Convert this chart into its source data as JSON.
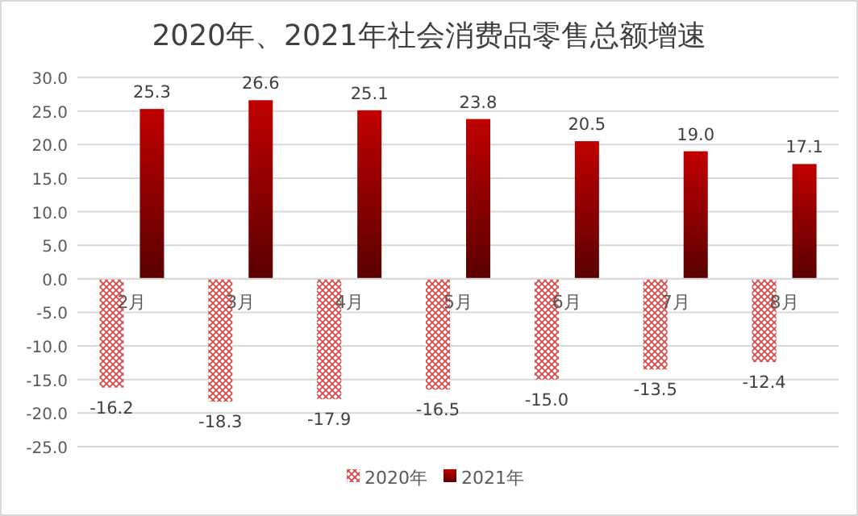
{
  "chart_data": {
    "type": "bar",
    "title": "2020年、2021年社会消费品零售总额增速",
    "categories": [
      "2月",
      "3月",
      "4月",
      "5月",
      "6月",
      "7月",
      "8月"
    ],
    "series": [
      {
        "name": "2020年",
        "color": "#d84848",
        "values": [
          -16.2,
          -18.3,
          -17.9,
          -16.5,
          -15.0,
          -13.5,
          -12.4
        ],
        "value_labels": [
          "-16.2",
          "-18.3",
          "-17.9",
          "-16.5",
          "-15.0",
          "-13.5",
          "-12.4"
        ]
      },
      {
        "name": "2021年",
        "color": "#c00000",
        "values": [
          25.3,
          26.6,
          25.1,
          23.8,
          20.5,
          19.0,
          17.1
        ],
        "value_labels": [
          "25.3",
          "26.6",
          "25.1",
          "23.8",
          "20.5",
          "19.0",
          "17.1"
        ]
      }
    ],
    "ylim": [
      -25,
      30
    ],
    "yticks": [
      {
        "value": -25,
        "label": "-25.0"
      },
      {
        "value": -20,
        "label": "-20.0"
      },
      {
        "value": -15,
        "label": "-15.0"
      },
      {
        "value": -10,
        "label": "-10.0"
      },
      {
        "value": -5,
        "label": "-5.0"
      },
      {
        "value": 0,
        "label": "0.0"
      },
      {
        "value": 5,
        "label": "5.0"
      },
      {
        "value": 10,
        "label": "10.0"
      },
      {
        "value": 15,
        "label": "15.0"
      },
      {
        "value": 20,
        "label": "20.0"
      },
      {
        "value": 25,
        "label": "25.0"
      },
      {
        "value": 30,
        "label": "30.0"
      }
    ],
    "grid": "y",
    "legend": "bottom"
  }
}
